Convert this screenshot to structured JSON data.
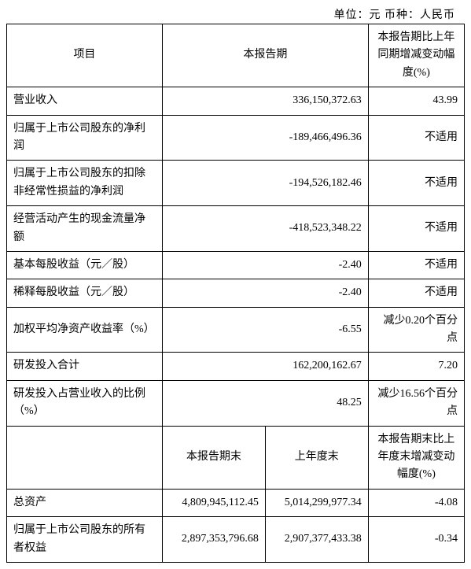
{
  "unit_line": "单位：元  币种：人民币",
  "header": {
    "item": "项目",
    "period": "本报告期",
    "change": "本报告期比上年同期增减变动幅度(%)"
  },
  "rows": [
    {
      "label": "营业收入",
      "value": "336,150,372.63",
      "change": "43.99"
    },
    {
      "label": "归属于上市公司股东的净利润",
      "value": "-189,466,496.36",
      "change": "不适用"
    },
    {
      "label": "归属于上市公司股东的扣除非经常性损益的净利润",
      "value": "-194,526,182.46",
      "change": "不适用"
    },
    {
      "label": "经营活动产生的现金流量净额",
      "value": "-418,523,348.22",
      "change": "不适用"
    },
    {
      "label": "基本每股收益（元／股）",
      "value": "-2.40",
      "change": "不适用"
    },
    {
      "label": "稀释每股收益（元／股）",
      "value": "-2.40",
      "change": "不适用"
    },
    {
      "label": "加权平均净资产收益率（%）",
      "value": "-6.55",
      "change": "减少0.20个百分点"
    },
    {
      "label": "研发投入合计",
      "value": "162,200,162.67",
      "change": "7.20"
    },
    {
      "label": "研发投入占营业收入的比例（%）",
      "value": "48.25",
      "change": "减少16.56个百分点"
    }
  ],
  "header2": {
    "period_end": "本报告期末",
    "prev_end": "上年度末",
    "change2": "本报告期末比上年度末增减变动幅度(%)"
  },
  "rows2": [
    {
      "label": "总资产",
      "v1": "4,809,945,112.45",
      "v2": "5,014,299,977.34",
      "change": "-4.08"
    },
    {
      "label": "归属于上市公司股东的所有者权益",
      "v1": "2,897,353,796.68",
      "v2": "2,907,377,433.38",
      "change": "-0.34"
    }
  ],
  "colors": {
    "border": "#000000",
    "background": "#ffffff",
    "text": "#000000"
  }
}
